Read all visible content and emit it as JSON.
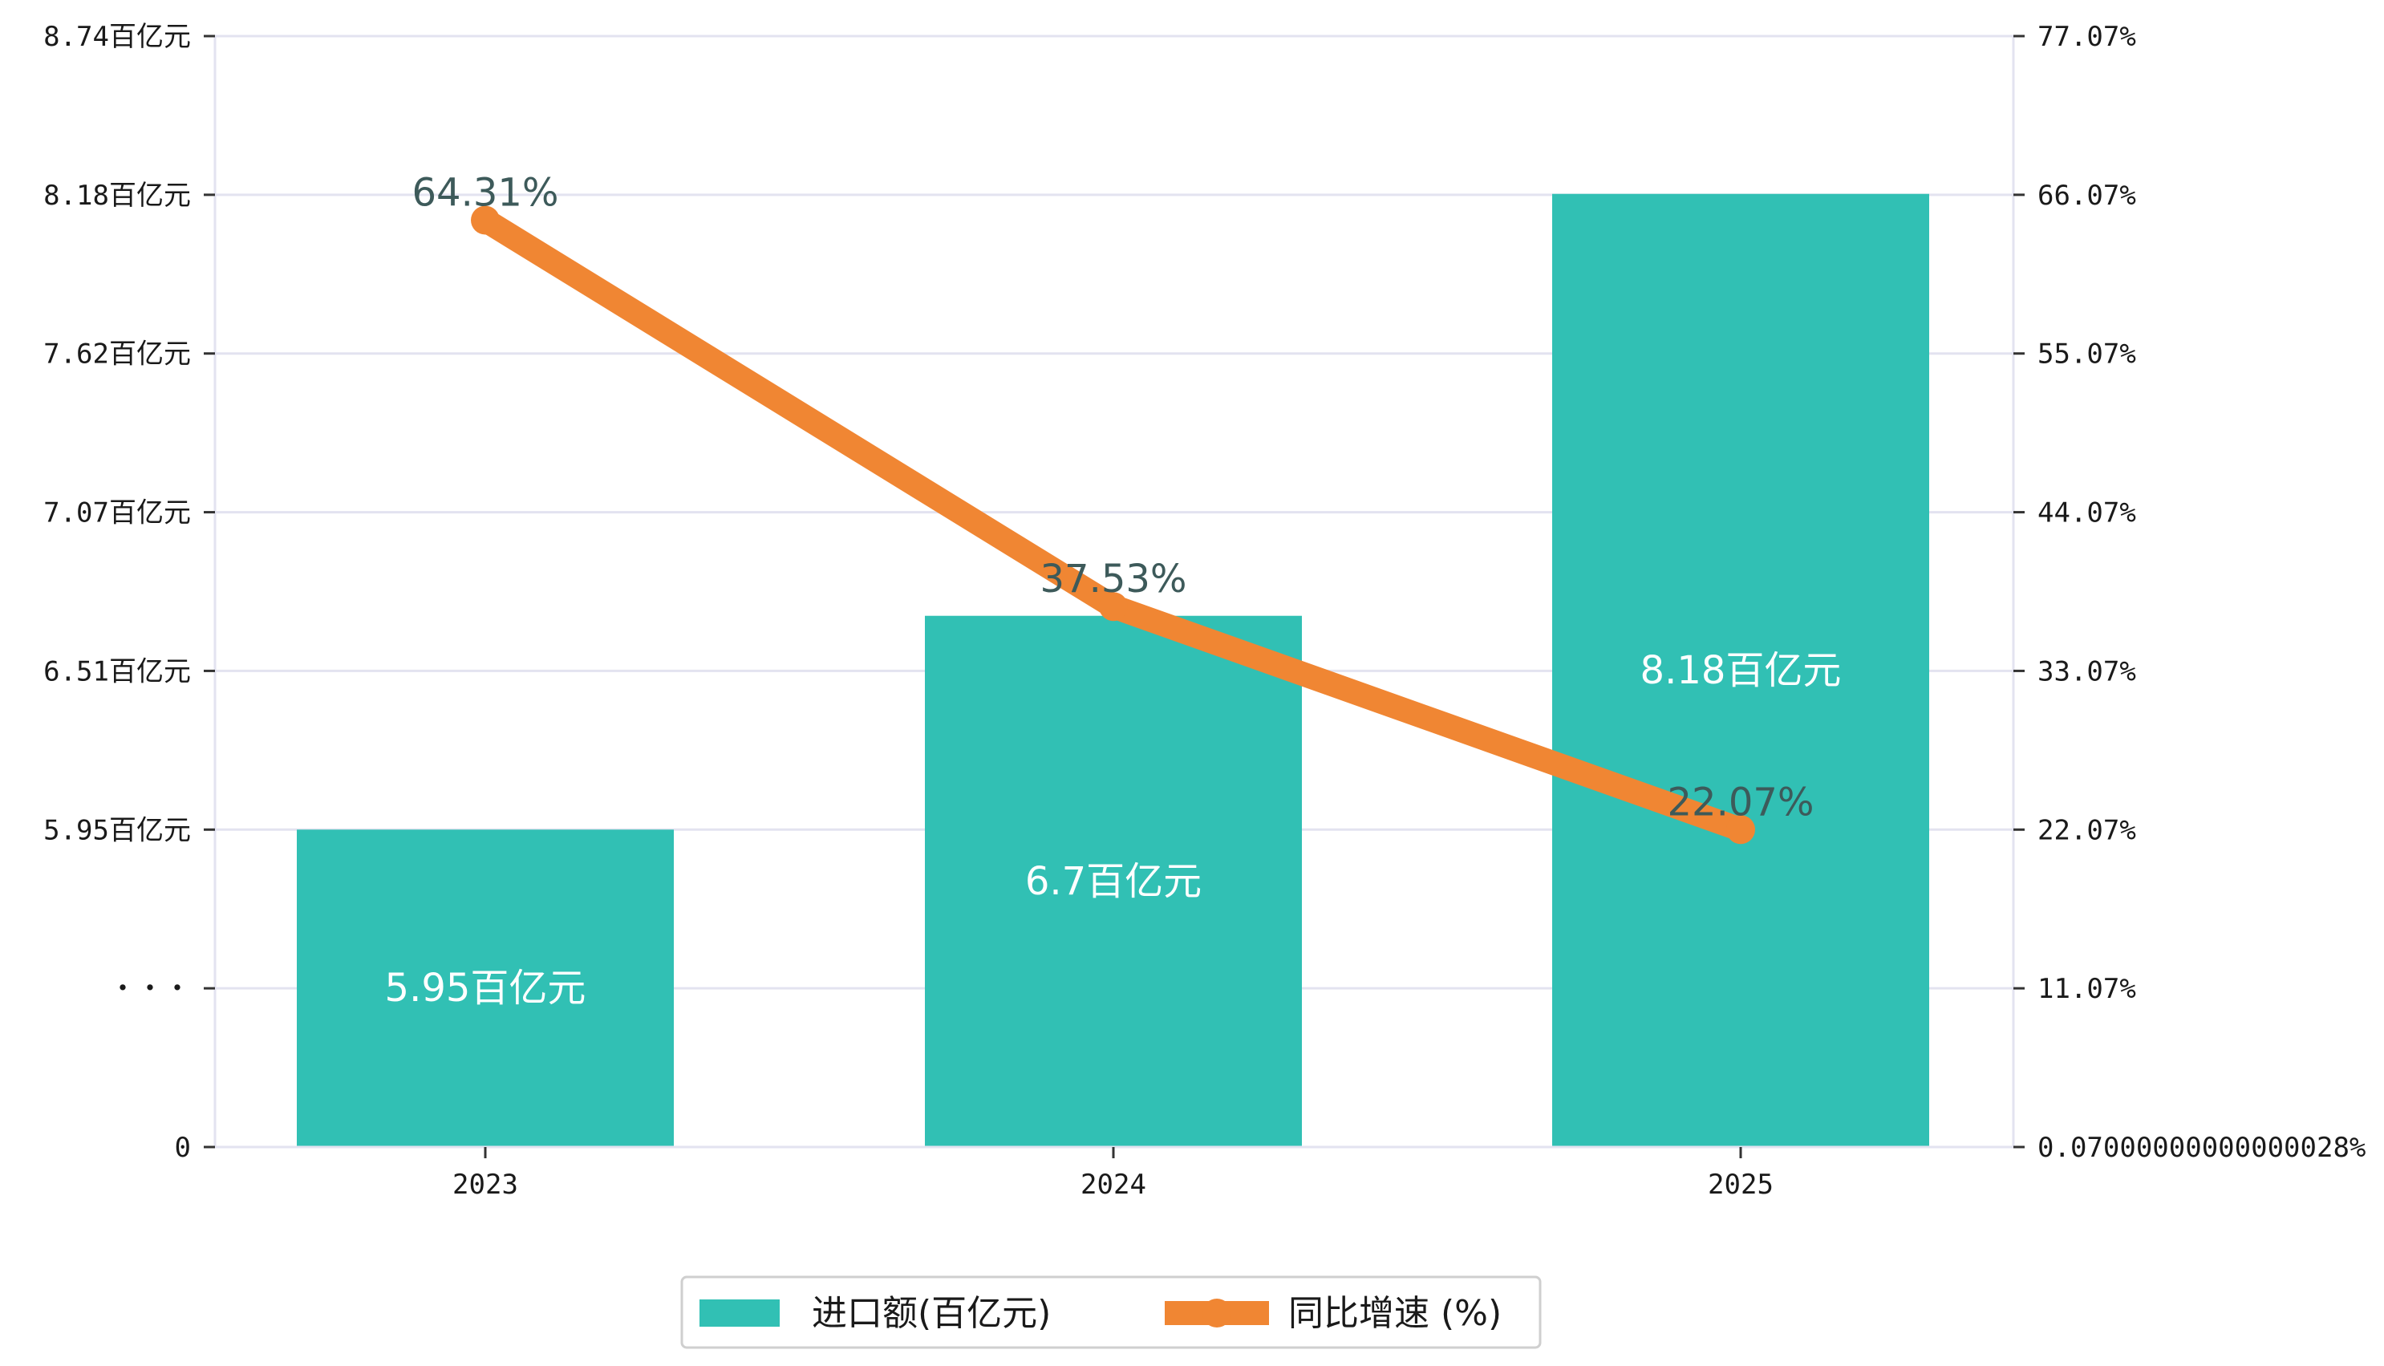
{
  "chart_data": {
    "type": "bar+line",
    "categories": [
      "2023",
      "2024",
      "2025"
    ],
    "series": [
      {
        "name": "进口额(百亿元)",
        "type": "bar",
        "axis": "left",
        "values": [
          5.95,
          6.7,
          8.18
        ],
        "labels": [
          "5.95百亿元",
          "6.7百亿元",
          "8.18百亿元"
        ],
        "color": "#31c0b4"
      },
      {
        "name": "同比增速 (%)",
        "type": "line",
        "axis": "right",
        "values": [
          64.31,
          37.53,
          22.07
        ],
        "labels": [
          "64.31%",
          "37.53%",
          "22.07%"
        ],
        "color": "#f08633"
      }
    ],
    "left_axis": {
      "tick_labels": [
        "0",
        "・・・",
        "5.95百亿元",
        "6.51百亿元",
        "7.07百亿元",
        "7.62百亿元",
        "8.18百亿元",
        "8.74百亿元"
      ],
      "broken": true,
      "note": "piecewise scale: first interval 0 to 5.40, then uniform steps of ~0.557"
    },
    "right_axis": {
      "tick_labels": [
        "0.07000000000000028%",
        "11.07%",
        "22.07%",
        "33.07%",
        "44.07%",
        "55.07%",
        "66.07%",
        "77.07%"
      ],
      "ylim": [
        0.07,
        77.07
      ]
    },
    "grid": true,
    "legend_position": "bottom-center",
    "gridline_color": "#e3e3f0",
    "bar_label_color": "#ffffff",
    "line_label_color": "#3d5a5a"
  }
}
